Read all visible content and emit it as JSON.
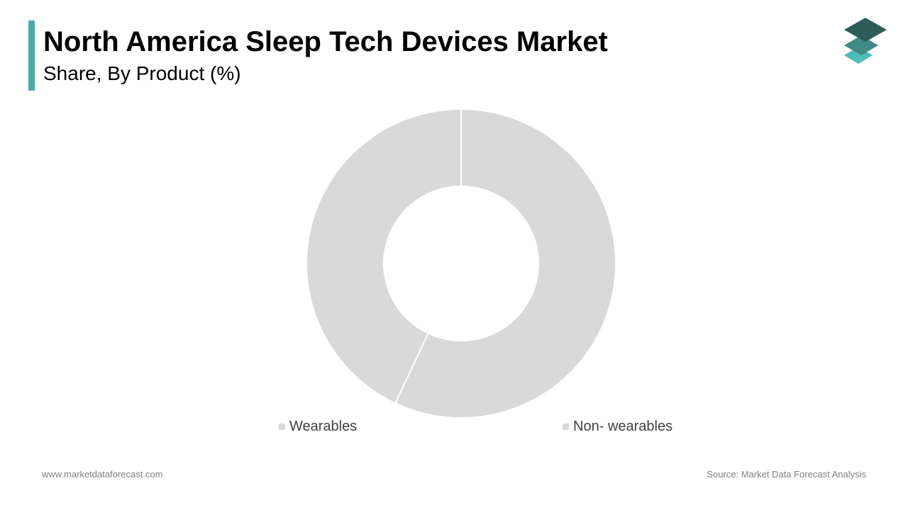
{
  "header": {
    "title": "North America Sleep Tech Devices Market",
    "subtitle": "Share, By Product (%)"
  },
  "logo": {
    "icon": "stacked-layers-icon",
    "colors": [
      "#2e5c58",
      "#3f8a84",
      "#4dbcb6"
    ]
  },
  "colors": {
    "accent": "#4aaaa5",
    "slice": "#d9d9d9",
    "slice_border": "#ffffff",
    "legend_text": "#404040",
    "footer_text": "#7f7f7f"
  },
  "chart_data": {
    "type": "pie",
    "variant": "donut",
    "title": "North America Sleep Tech Devices Market",
    "subtitle": "Share, By Product (%)",
    "categories": [
      "Non- wearables",
      "Wearables"
    ],
    "values": [
      57,
      43
    ],
    "start_angle_deg": 0,
    "direction": "clockwise",
    "hole_fraction": 0.5,
    "legend": {
      "position": "bottom",
      "entries": [
        "Wearables",
        "Non- wearables"
      ]
    }
  },
  "footer": {
    "website": "www.marketdataforecast.com",
    "source": "Source: Market Data Forecast Analysis"
  }
}
